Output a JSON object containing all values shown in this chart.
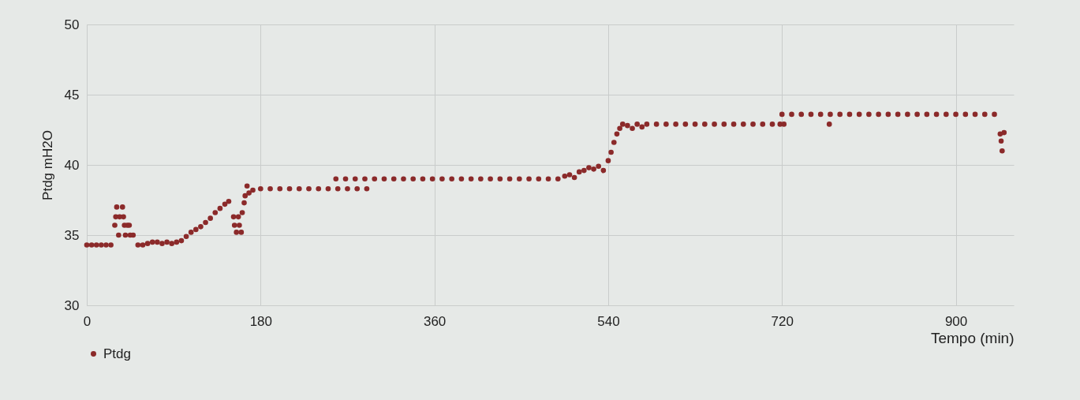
{
  "chart_data": {
    "type": "scatter",
    "xlabel": "Tempo (min)",
    "ylabel": "Ptdg mH2O",
    "xlim": [
      0,
      960
    ],
    "xticks": [
      0,
      180,
      360,
      540,
      720,
      900
    ],
    "ylim": [
      30,
      50
    ],
    "yticks": [
      30,
      35,
      40,
      45,
      50
    ],
    "grid": true,
    "legend": "bottom",
    "marker": "circle",
    "series": [
      {
        "name": "Ptdg",
        "color": "#8b2a2a",
        "values": [
          34.3,
          34.3,
          34.3,
          34.3,
          34.3,
          34.3,
          35.7,
          36.3,
          37.0,
          35.0,
          36.3,
          37.0,
          36.3,
          35.7,
          35.0,
          35.7,
          35.7,
          35.0,
          35.0,
          34.3,
          34.3,
          34.4,
          34.5,
          34.5,
          34.4,
          34.5,
          34.4,
          34.5,
          34.6,
          34.9,
          35.2,
          35.4,
          35.6,
          35.9,
          36.2,
          36.6,
          36.9,
          37.2,
          37.4,
          36.3,
          35.7,
          35.2,
          36.3,
          35.7,
          35.2,
          36.6,
          37.3,
          37.8,
          38.5,
          38.0,
          38.2,
          38.3,
          38.3,
          38.3,
          38.3,
          38.3,
          38.3,
          38.3,
          38.3,
          39.0,
          38.3,
          39.0,
          38.3,
          39.0,
          38.3,
          39.0,
          38.3,
          39.0,
          39.0,
          39.0,
          39.0,
          39.0,
          39.0,
          39.0,
          39.0,
          39.0,
          39.0,
          39.0,
          39.0,
          39.0,
          39.0,
          39.0,
          39.0,
          39.0,
          39.0,
          39.0,
          39.0,
          39.2,
          39.3,
          39.1,
          39.5,
          39.6,
          39.8,
          39.7,
          39.9,
          39.6,
          40.3,
          40.9,
          41.6,
          42.2,
          42.6,
          42.9,
          42.8,
          42.6,
          42.9,
          42.7,
          42.9,
          42.9,
          42.9,
          42.9,
          42.9,
          42.9,
          42.9,
          42.9,
          42.9,
          42.9,
          42.9,
          42.9,
          42.9,
          42.9,
          42.9,
          43.6,
          42.9,
          43.6,
          43.6,
          43.6,
          43.6,
          42.9,
          43.6,
          43.6,
          43.6,
          43.6,
          43.6,
          43.6,
          43.6,
          43.6,
          43.6,
          43.6,
          43.6,
          43.6,
          43.6,
          43.6,
          43.6,
          43.6,
          43.6,
          43.6,
          42.2,
          41.7,
          41.0,
          42.3
        ]
      }
    ],
    "x": [
      0,
      5,
      10,
      15,
      20,
      25,
      29,
      30,
      31,
      33,
      34,
      37,
      38,
      39,
      40,
      42,
      44,
      45,
      48,
      53,
      58,
      63,
      68,
      73,
      78,
      83,
      88,
      93,
      98,
      103,
      108,
      113,
      118,
      123,
      128,
      133,
      138,
      143,
      147,
      152,
      153,
      155,
      157,
      158,
      160,
      161,
      163,
      164,
      166,
      168,
      172,
      180,
      190,
      200,
      210,
      220,
      230,
      240,
      250,
      258,
      260,
      268,
      270,
      278,
      280,
      288,
      290,
      298,
      308,
      318,
      328,
      338,
      348,
      358,
      368,
      378,
      388,
      398,
      408,
      418,
      428,
      438,
      448,
      458,
      468,
      478,
      488,
      495,
      500,
      505,
      510,
      515,
      520,
      525,
      530,
      535,
      540,
      543,
      546,
      549,
      552,
      555,
      560,
      565,
      570,
      575,
      580,
      590,
      600,
      610,
      620,
      630,
      640,
      650,
      660,
      670,
      680,
      690,
      700,
      710,
      718,
      720,
      722,
      730,
      740,
      750,
      760,
      769,
      770,
      780,
      790,
      800,
      810,
      820,
      830,
      840,
      850,
      860,
      870,
      880,
      890,
      900,
      910,
      920,
      930,
      940,
      946,
      947,
      948,
      950
    ]
  }
}
